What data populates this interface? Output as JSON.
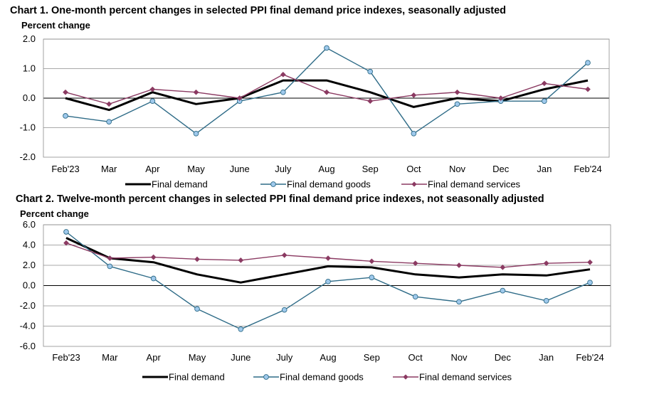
{
  "chart_data": [
    {
      "type": "line",
      "title": "Chart 1. One-month percent changes in selected PPI final demand price indexes, seasonally adjusted",
      "ylabel": "Percent change",
      "xlabel": "",
      "categories": [
        "Feb'23",
        "Mar",
        "Apr",
        "May",
        "June",
        "July",
        "Aug",
        "Sep",
        "Oct",
        "Nov",
        "Dec",
        "Jan",
        "Feb'24"
      ],
      "ylim": [
        -2.0,
        2.0
      ],
      "yticks": [
        "2.0",
        "1.0",
        "0.0",
        "-1.0",
        "-2.0"
      ],
      "ytick_values": [
        2,
        1,
        0,
        -1,
        -2
      ],
      "grid": true,
      "legend": "bottom",
      "series": [
        {
          "name": "Final demand",
          "color": "#000000",
          "values": [
            0.0,
            -0.4,
            0.2,
            -0.2,
            0.0,
            0.6,
            0.6,
            0.2,
            -0.3,
            0.0,
            -0.1,
            0.3,
            0.6
          ]
        },
        {
          "name": "Final demand goods",
          "color": "#2e6b87",
          "values": [
            -0.6,
            -0.8,
            -0.1,
            -1.2,
            -0.1,
            0.2,
            1.7,
            0.9,
            -1.2,
            -0.2,
            -0.1,
            -0.1,
            1.2
          ]
        },
        {
          "name": "Final demand services",
          "color": "#8b3a62",
          "values": [
            0.2,
            -0.2,
            0.3,
            0.2,
            0.0,
            0.8,
            0.2,
            -0.1,
            0.1,
            0.2,
            0.0,
            0.5,
            0.3
          ]
        }
      ]
    },
    {
      "type": "line",
      "title": "Chart 2. Twelve-month percent changes in selected PPI final demand price indexes, not seasonally adjusted",
      "ylabel": "Percent change",
      "xlabel": "",
      "categories": [
        "Feb'23",
        "Mar",
        "Apr",
        "May",
        "June",
        "July",
        "Aug",
        "Sep",
        "Oct",
        "Nov",
        "Dec",
        "Jan",
        "Feb'24"
      ],
      "ylim": [
        -6.0,
        6.0
      ],
      "yticks": [
        "6.0",
        "4.0",
        "2.0",
        "0.0",
        "-2.0",
        "-4.0",
        "-6.0"
      ],
      "ytick_values": [
        6,
        4,
        2,
        0,
        -2,
        -4,
        -6
      ],
      "grid": true,
      "legend": "bottom",
      "series": [
        {
          "name": "Final demand",
          "color": "#000000",
          "values": [
            4.7,
            2.7,
            2.3,
            1.1,
            0.3,
            1.1,
            1.9,
            1.8,
            1.1,
            0.8,
            1.1,
            1.0,
            1.6
          ]
        },
        {
          "name": "Final demand goods",
          "color": "#2e6b87",
          "values": [
            5.3,
            1.9,
            0.7,
            -2.3,
            -4.3,
            -2.4,
            0.4,
            0.8,
            -1.1,
            -1.6,
            -0.5,
            -1.5,
            0.3
          ]
        },
        {
          "name": "Final demand services",
          "color": "#8b3a62",
          "values": [
            4.2,
            2.7,
            2.8,
            2.6,
            2.5,
            3.0,
            2.7,
            2.4,
            2.2,
            2.0,
            1.8,
            2.2,
            2.3
          ]
        }
      ]
    }
  ]
}
